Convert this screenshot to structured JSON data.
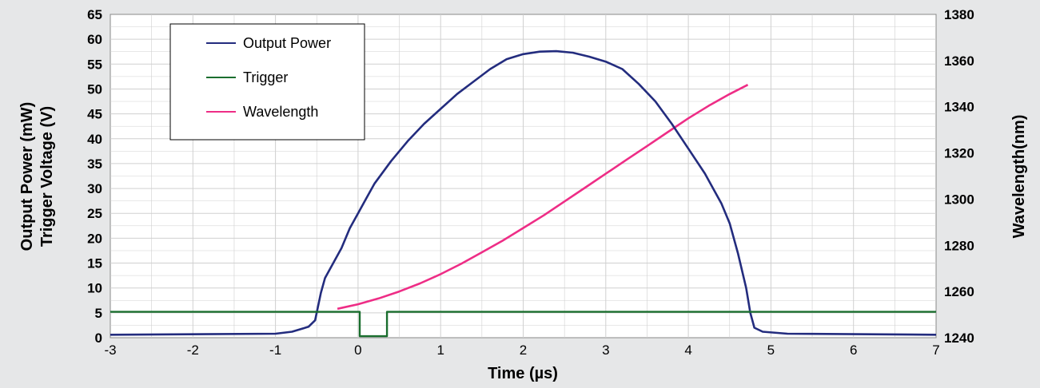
{
  "chart_data": {
    "type": "line",
    "xlabel": "Time (µs)",
    "ylabel_lines": [
      "Output Power (mW)",
      "Trigger Voltage (V)"
    ],
    "y2label": "Wavelength(nm)",
    "xlim": [
      -3,
      7
    ],
    "ylim": [
      0,
      65
    ],
    "y2lim": [
      1240,
      1380
    ],
    "x_ticks": [
      "-3",
      "-2",
      "-1",
      "0",
      "1",
      "2",
      "3",
      "4",
      "5",
      "6",
      "7"
    ],
    "y_ticks": [
      "0",
      "5",
      "10",
      "15",
      "20",
      "25",
      "30",
      "35",
      "40",
      "45",
      "50",
      "55",
      "60",
      "65"
    ],
    "y2_ticks": [
      "1240",
      "1260",
      "1280",
      "1300",
      "1320",
      "1340",
      "1360",
      "1380"
    ],
    "grid": true,
    "legend_position": "top-left",
    "series": [
      {
        "name": "Output Power",
        "axis": "left",
        "color": "#232c7e",
        "points": [
          [
            -3,
            0.6
          ],
          [
            -1.0,
            0.8
          ],
          [
            -0.8,
            1.2
          ],
          [
            -0.6,
            2.2
          ],
          [
            -0.52,
            3.5
          ],
          [
            -0.45,
            9
          ],
          [
            -0.4,
            12
          ],
          [
            -0.3,
            15
          ],
          [
            -0.2,
            18
          ],
          [
            -0.1,
            22
          ],
          [
            0.0,
            25
          ],
          [
            0.1,
            28
          ],
          [
            0.2,
            31
          ],
          [
            0.4,
            35.5
          ],
          [
            0.6,
            39.5
          ],
          [
            0.8,
            43
          ],
          [
            1.0,
            46
          ],
          [
            1.2,
            49
          ],
          [
            1.4,
            51.5
          ],
          [
            1.6,
            54
          ],
          [
            1.8,
            56
          ],
          [
            2.0,
            57
          ],
          [
            2.2,
            57.5
          ],
          [
            2.4,
            57.6
          ],
          [
            2.6,
            57.3
          ],
          [
            2.8,
            56.5
          ],
          [
            3.0,
            55.5
          ],
          [
            3.2,
            54
          ],
          [
            3.4,
            51
          ],
          [
            3.6,
            47.5
          ],
          [
            3.8,
            43
          ],
          [
            4.0,
            38
          ],
          [
            4.2,
            33
          ],
          [
            4.3,
            30
          ],
          [
            4.4,
            27
          ],
          [
            4.5,
            23
          ],
          [
            4.6,
            17
          ],
          [
            4.7,
            10
          ],
          [
            4.75,
            5
          ],
          [
            4.8,
            2
          ],
          [
            4.9,
            1.2
          ],
          [
            5.2,
            0.8
          ],
          [
            7,
            0.6
          ]
        ]
      },
      {
        "name": "Trigger",
        "axis": "left",
        "color": "#1a6e2e",
        "points": [
          [
            -3,
            5.2
          ],
          [
            0.02,
            5.2
          ],
          [
            0.02,
            0.3
          ],
          [
            0.35,
            0.3
          ],
          [
            0.35,
            5.2
          ],
          [
            7,
            5.2
          ]
        ]
      },
      {
        "name": "Wavelength",
        "axis": "right",
        "color": "#ee2d86",
        "points": [
          [
            -0.25,
            1252.5
          ],
          [
            0.0,
            1254.5
          ],
          [
            0.25,
            1257
          ],
          [
            0.5,
            1260
          ],
          [
            0.75,
            1263.5
          ],
          [
            1.0,
            1267.5
          ],
          [
            1.25,
            1272
          ],
          [
            1.5,
            1277
          ],
          [
            1.75,
            1282
          ],
          [
            2.0,
            1287.5
          ],
          [
            2.25,
            1293
          ],
          [
            2.5,
            1299
          ],
          [
            2.75,
            1305
          ],
          [
            3.0,
            1311
          ],
          [
            3.25,
            1317
          ],
          [
            3.5,
            1323
          ],
          [
            3.75,
            1329
          ],
          [
            4.0,
            1335
          ],
          [
            4.25,
            1340.5
          ],
          [
            4.5,
            1345.5
          ],
          [
            4.72,
            1349.5
          ]
        ]
      }
    ]
  },
  "colors": {
    "background": "#e6e7e8",
    "plot_area": "#ffffff",
    "grid": "#d0d0d0"
  }
}
